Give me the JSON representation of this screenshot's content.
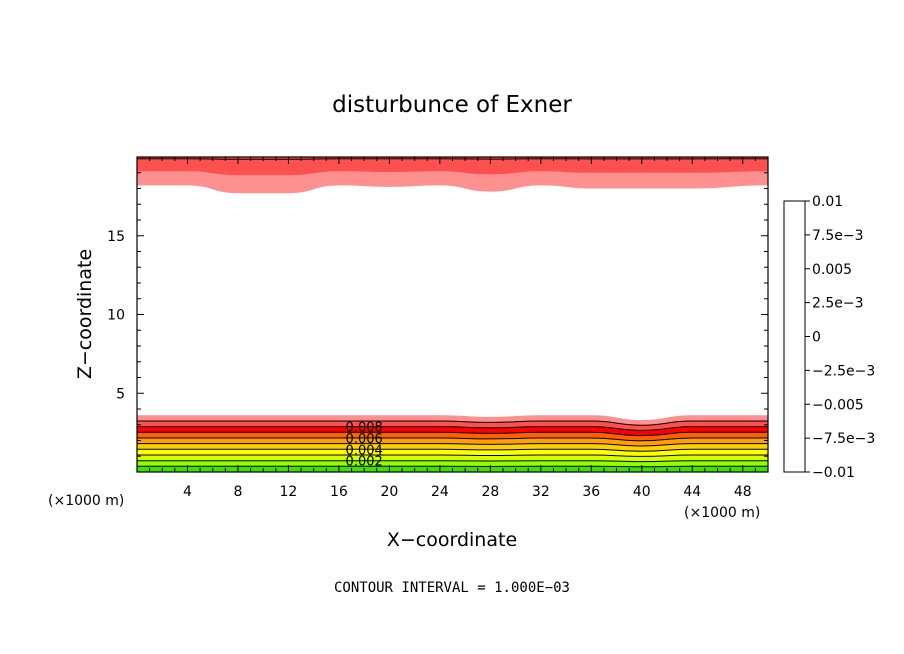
{
  "chart_data": {
    "type": "contour",
    "title": "disturbunce of Exner",
    "xlabel": "X−coordinate",
    "ylabel": "Z−coordinate",
    "x_unit_left": "(×1000 m)",
    "x_unit_right": "(×1000 m)",
    "xlim": [
      0,
      50
    ],
    "ylim": [
      0,
      20
    ],
    "xticks": [
      4,
      8,
      12,
      16,
      20,
      24,
      28,
      32,
      36,
      40,
      44,
      48
    ],
    "xtick_labels": [
      "4",
      "8",
      "12",
      "16",
      "20",
      "24",
      "28",
      "32",
      "36",
      "40",
      "44",
      "48"
    ],
    "yticks": [
      5,
      10,
      15
    ],
    "ytick_labels": [
      "5",
      "10",
      "15"
    ],
    "contour_interval_text": "CONTOUR INTERVAL = 1.000E−03",
    "contour_labels": [
      "0.008",
      "0.006",
      "0.004",
      "0.002"
    ],
    "contour_label_values": [
      0.008,
      0.006,
      0.004,
      0.002
    ],
    "contour_label_x": 18,
    "colorbar": {
      "tick_labels": [
        "0.01",
        "7.5e−3",
        "0.005",
        "2.5e−3",
        "0",
        "−2.5e−3",
        "−0.005",
        "−7.5e−3",
        "−0.01"
      ],
      "tick_values": [
        0.01,
        0.0075,
        0.005,
        0.0025,
        0,
        -0.0025,
        -0.005,
        -0.0075,
        -0.01
      ],
      "levels": [
        -0.01,
        -0.009,
        -0.008,
        -0.007,
        -0.006,
        -0.005,
        -0.004,
        -0.003,
        -0.002,
        -0.001,
        0,
        0.001,
        0.002,
        0.003,
        0.004,
        0.005,
        0.006,
        0.007,
        0.008,
        0.009,
        0.01
      ],
      "colors": [
        "#7f00bf",
        "#4000d0",
        "#1a1aff",
        "#0040ff",
        "#0080ff",
        "#00a8ff",
        "#00d0ff",
        "#00e8e0",
        "#00e8b0",
        "#00d070",
        "#00c840",
        "#40e000",
        "#90ff00",
        "#d8ff00",
        "#ffff00",
        "#ffd000",
        "#ffa000",
        "#ff6000",
        "#ff0000",
        "#ff5050",
        "#ff9090"
      ]
    },
    "field": {
      "bottom_layer": {
        "top_height": [
          3.6,
          3.6,
          3.6,
          3.6,
          3.6,
          3.6,
          3.5,
          3.6,
          3.6,
          3.3,
          3.6,
          3.6
        ],
        "band_colors": [
          "#40e000",
          "#90ff00",
          "#d8ff00",
          "#ffff00",
          "#ffd000",
          "#ffa000",
          "#ff6000",
          "#ff0000",
          "#ff5050",
          "#ff9090"
        ]
      },
      "top_layer": {
        "bottom_height": [
          18.2,
          17.7,
          17.7,
          18.2,
          18.1,
          18.2,
          17.8,
          18.2,
          18.0,
          18.0,
          18.0,
          18.2
        ],
        "band_colors": [
          "#ff9090",
          "#ff5050"
        ]
      },
      "profile_x": [
        0,
        4,
        8,
        12,
        16,
        20,
        24,
        28,
        32,
        36,
        40,
        44,
        50
      ]
    }
  }
}
